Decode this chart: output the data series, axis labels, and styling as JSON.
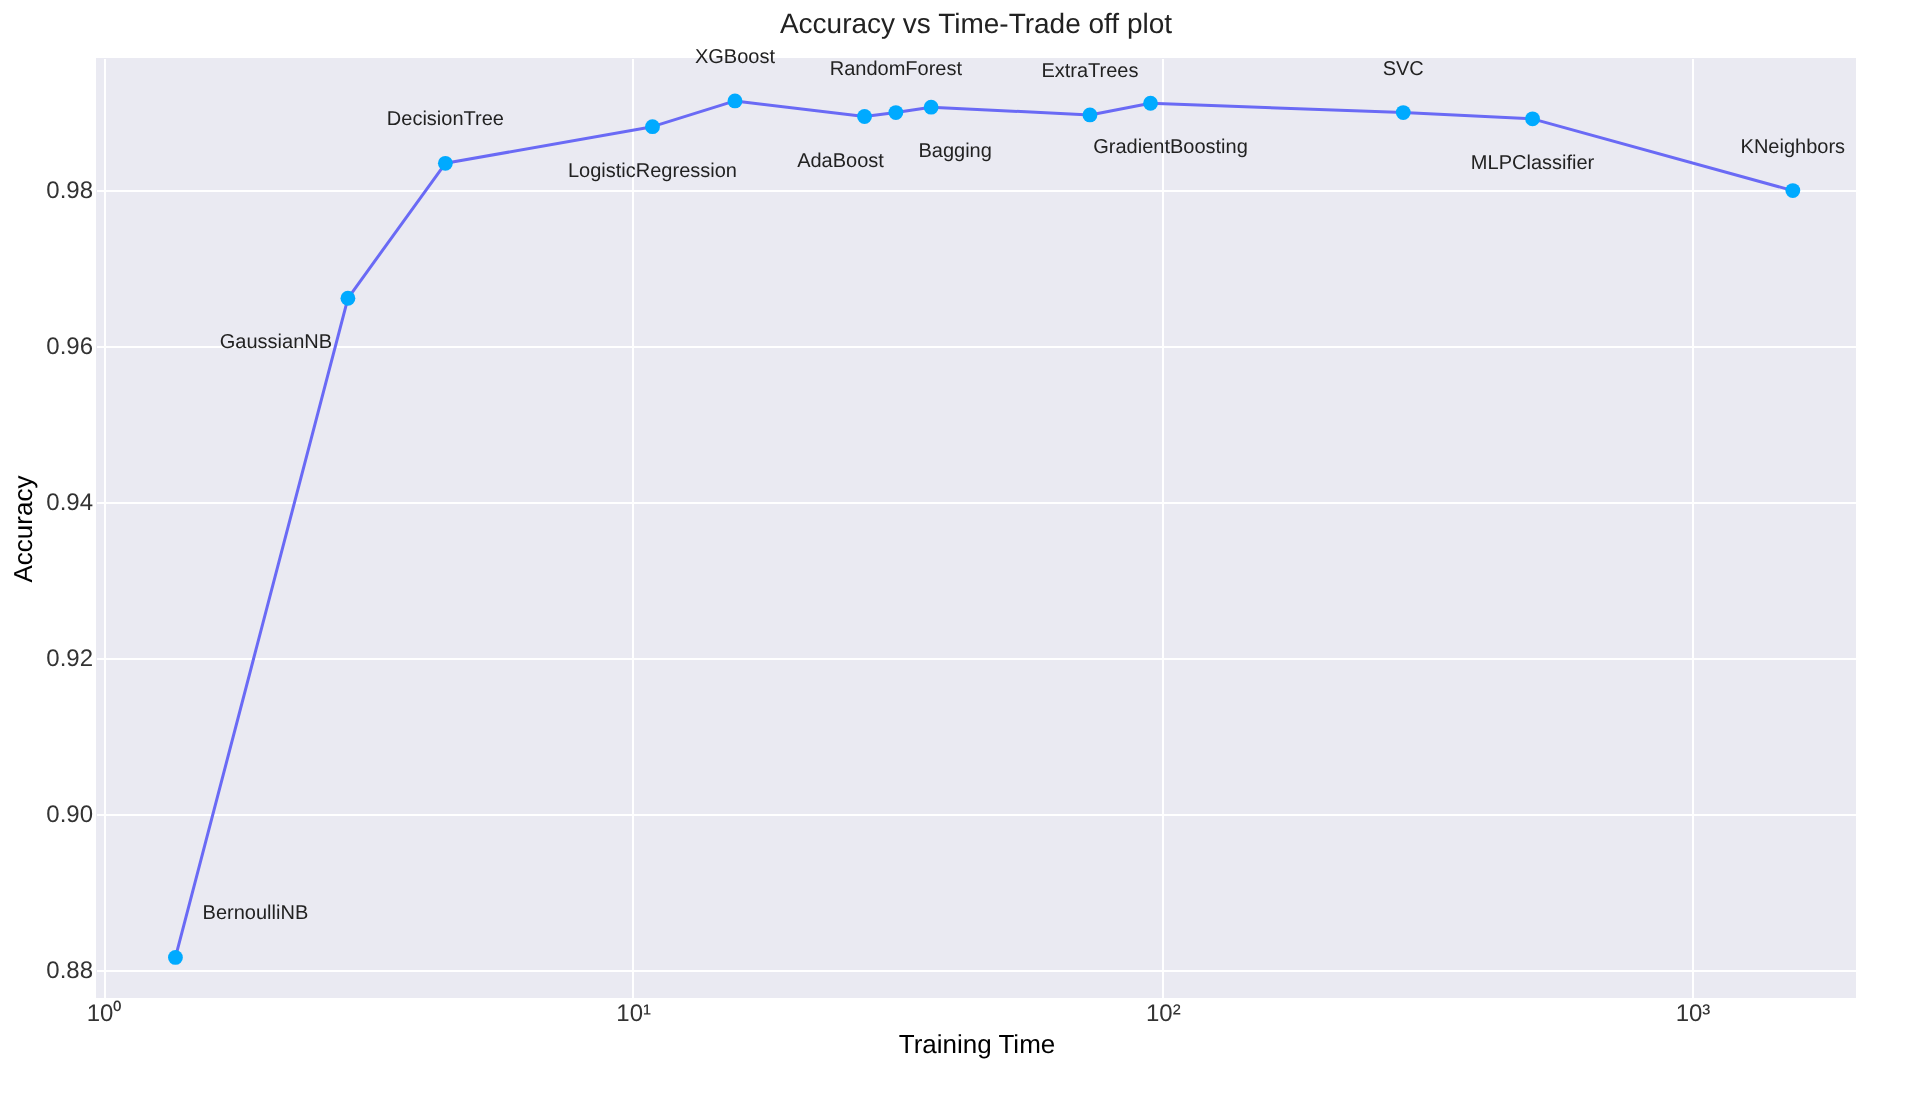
{
  "chart_data": {
    "type": "line",
    "title": "Accuracy vs Time-Trade off plot",
    "xlabel": "Training Time",
    "ylabel": "Accuracy",
    "log": "x",
    "xlim": [
      0.97,
      2040
    ],
    "ylim": [
      0.8763,
      0.9968
    ],
    "xticks": [
      {
        "value": 1,
        "label": "10⁰"
      },
      {
        "value": 10,
        "label": "10¹"
      },
      {
        "value": 100,
        "label": "10²"
      },
      {
        "value": 1000,
        "label": "10³"
      }
    ],
    "yticks": [
      0.88,
      {
        "value": 0.9,
        "label": "0.90"
      },
      0.92,
      0.94,
      0.96,
      0.98
    ],
    "grid": true,
    "marker": "circle",
    "line_style": "solid",
    "legend": false,
    "series": [
      {
        "color": "#6a6af5",
        "colors": [
          "#00aaff",
          "#00aaff",
          "#00aaff",
          "#00aaff",
          "#00aaff",
          "#00aaff",
          "#00aaff",
          "#00aaff",
          "#00aaff",
          "#00aaff",
          "#00aaff",
          "#00aaff",
          "#00aaff"
        ],
        "x": [
          1.37,
          2.9,
          4.43,
          10.9,
          15.6,
          27.4,
          31.4,
          36.6,
          73,
          95,
          285,
          500,
          1550
        ],
        "values": [
          0.8815,
          0.966,
          0.9833,
          0.988,
          0.9913,
          0.9893,
          0.9898,
          0.9905,
          0.9895,
          0.991,
          0.9898,
          0.989,
          0.9798
        ]
      }
    ],
    "annotations": [
      {
        "text": "BernoulliNB",
        "x": 1.37,
        "y": 0.8815
      },
      {
        "text": "GaussianNB",
        "x": 2.9,
        "y": 0.966
      },
      {
        "text": "DecisionTree",
        "x": 4.43,
        "y": 0.9833
      },
      {
        "text": "LogisticRegression",
        "x": 10.9,
        "y": 0.988
      },
      {
        "text": "XGBoost",
        "x": 15.6,
        "y": 0.9913
      },
      {
        "text": "AdaBoost",
        "x": 27.4,
        "y": 0.9893
      },
      {
        "text": "RandomForest",
        "x": 31.4,
        "y": 0.9898
      },
      {
        "text": "Bagging",
        "x": 36.6,
        "y": 0.9905
      },
      {
        "text": "ExtraTrees",
        "x": 73,
        "y": 0.9895
      },
      {
        "text": "GradientBoosting",
        "x": 95,
        "y": 0.991
      },
      {
        "text": "SVC",
        "x": 285,
        "y": 0.9898
      },
      {
        "text": "MLPClassifier",
        "x": 500,
        "y": 0.989
      },
      {
        "text": "KNeighbors",
        "x": 1550,
        "y": 0.9798
      }
    ]
  }
}
